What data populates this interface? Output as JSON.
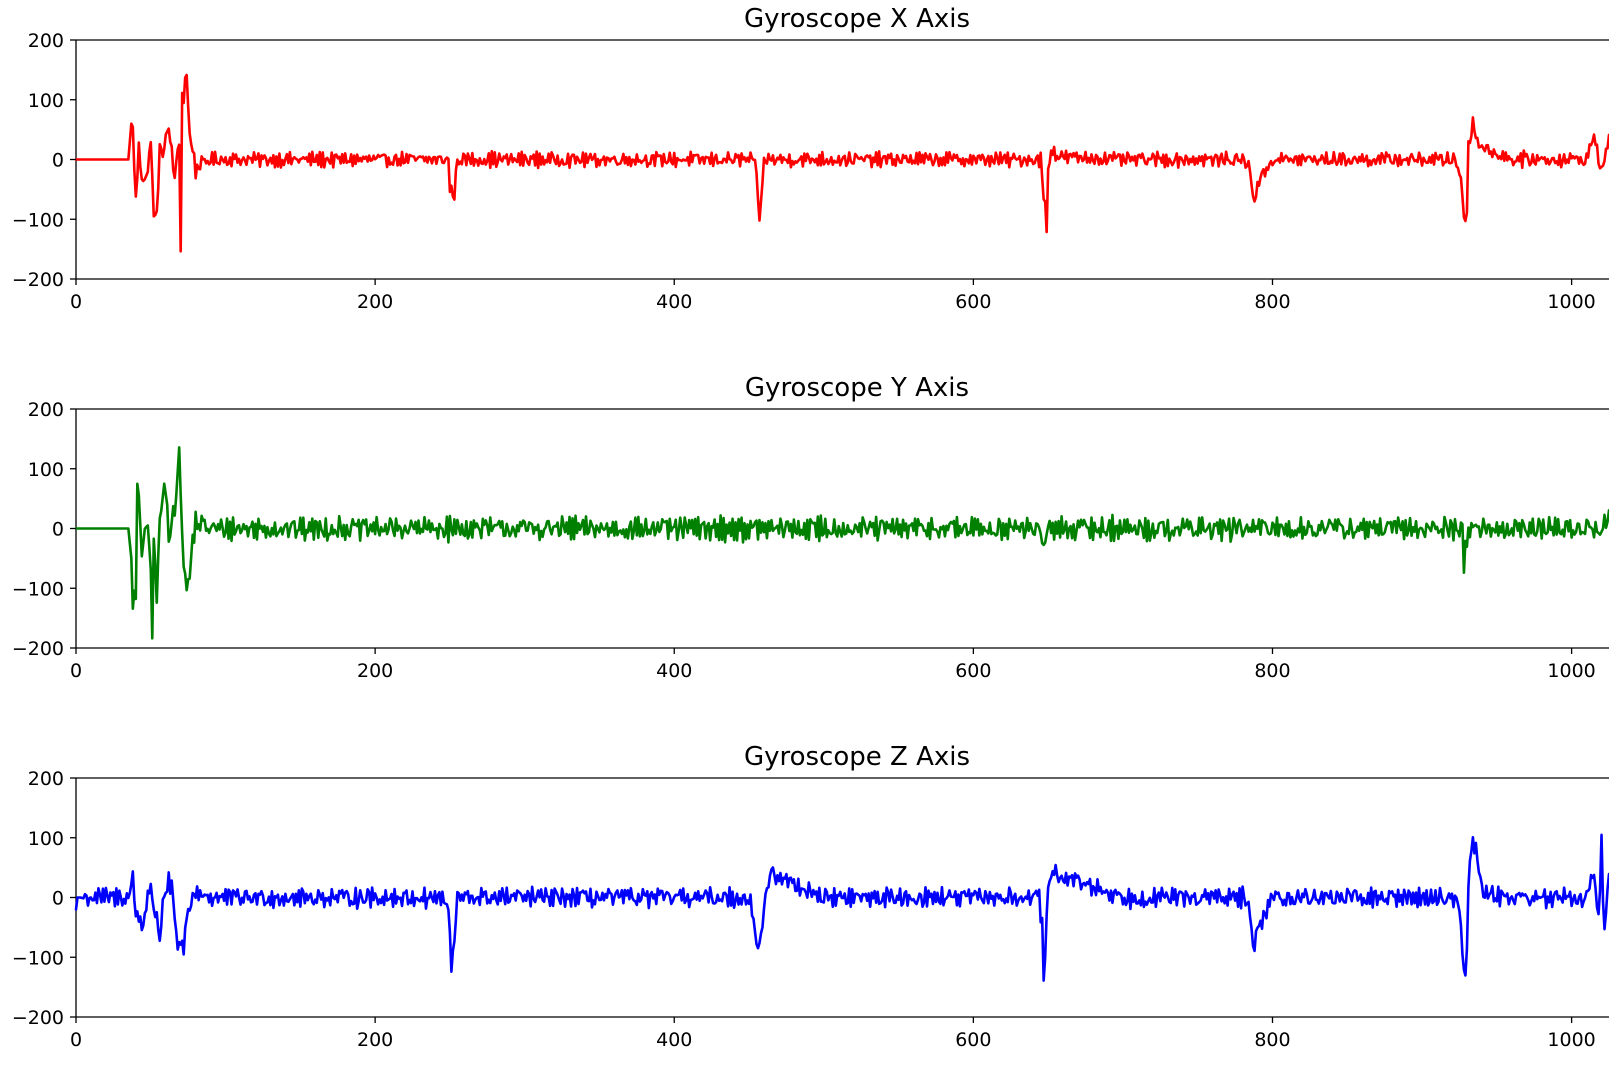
{
  "chart_data": [
    {
      "type": "line",
      "title": "Gyroscope X Axis",
      "xlabel": "",
      "ylabel": "",
      "xlim": [
        0,
        1025
      ],
      "ylim": [
        -200,
        200
      ],
      "xticks": [
        0,
        200,
        400,
        600,
        800,
        1000
      ],
      "yticks": [
        -200,
        -100,
        0,
        100,
        200
      ],
      "x_tick_labels": [
        "0",
        "200",
        "400",
        "600",
        "800",
        "1000"
      ],
      "y_tick_labels": [
        "−200",
        "−100",
        "0",
        "100",
        "200"
      ],
      "grid": false,
      "color": "#ff0000",
      "baseline_noise_amplitude": 16,
      "x": [
        0,
        35,
        37,
        38,
        40,
        42,
        44,
        46,
        48,
        50,
        52,
        54,
        56,
        58,
        60,
        62,
        64,
        66,
        68,
        69,
        70,
        71,
        72,
        73,
        74,
        76,
        78,
        80,
        82,
        90,
        100,
        130,
        160,
        200,
        249,
        250,
        252,
        253,
        255,
        258,
        300,
        350,
        400,
        450,
        452,
        454,
        455,
        456,
        457,
        458,
        460,
        500,
        550,
        600,
        645,
        646,
        647,
        648,
        649,
        650,
        652,
        656,
        700,
        750,
        780,
        784,
        786,
        788,
        790,
        800,
        850,
        900,
        922,
        926,
        927,
        928,
        929,
        930,
        931,
        932,
        934,
        936,
        940,
        960,
        980,
        1000,
        1010,
        1015,
        1020,
        1025
      ],
      "y": [
        0,
        0,
        60,
        50,
        -70,
        20,
        -30,
        -30,
        -25,
        40,
        -100,
        -90,
        15,
        10,
        40,
        45,
        20,
        -40,
        20,
        25,
        -145,
        105,
        100,
        140,
        138,
        40,
        20,
        -20,
        -10,
        0,
        0,
        0,
        0,
        0,
        0,
        -50,
        -55,
        -60,
        0,
        0,
        0,
        0,
        0,
        0,
        0,
        -10,
        -30,
        -60,
        -97,
        -80,
        0,
        0,
        0,
        0,
        0,
        -30,
        -60,
        -80,
        -115,
        -20,
        20,
        5,
        0,
        0,
        0,
        -10,
        -40,
        -70,
        -40,
        0,
        0,
        0,
        0,
        -30,
        -60,
        -95,
        -103,
        -80,
        20,
        35,
        60,
        40,
        20,
        0,
        0,
        0,
        0,
        40,
        -20,
        30
      ]
    },
    {
      "type": "line",
      "title": "Gyroscope Y Axis",
      "xlabel": "",
      "ylabel": "",
      "xlim": [
        0,
        1025
      ],
      "ylim": [
        -200,
        200
      ],
      "xticks": [
        0,
        200,
        400,
        600,
        800,
        1000
      ],
      "yticks": [
        -200,
        -100,
        0,
        100,
        200
      ],
      "x_tick_labels": [
        "0",
        "200",
        "400",
        "600",
        "800",
        "1000"
      ],
      "y_tick_labels": [
        "−200",
        "−100",
        "0",
        "100",
        "200"
      ],
      "grid": false,
      "color": "#008000",
      "baseline_noise_amplitude": 26,
      "x": [
        0,
        35,
        37,
        38,
        40,
        41,
        42,
        44,
        46,
        48,
        50,
        51,
        52,
        53,
        54,
        55,
        56,
        58,
        60,
        62,
        64,
        66,
        68,
        69,
        70,
        72,
        74,
        76,
        78,
        80,
        90,
        100,
        120,
        150,
        200,
        250,
        300,
        400,
        500,
        600,
        645,
        648,
        650,
        700,
        800,
        927,
        928,
        929,
        931,
        1000,
        1010,
        1020,
        1025
      ],
      "y": [
        0,
        0,
        -50,
        -120,
        -120,
        75,
        40,
        -40,
        5,
        -10,
        -65,
        -180,
        -30,
        -40,
        -125,
        -60,
        20,
        50,
        70,
        -20,
        20,
        40,
        90,
        120,
        70,
        -70,
        -100,
        -80,
        -20,
        10,
        0,
        0,
        0,
        0,
        0,
        0,
        0,
        0,
        0,
        0,
        0,
        -40,
        0,
        0,
        0,
        0,
        -55,
        -40,
        0,
        0,
        0,
        0,
        20
      ]
    },
    {
      "type": "line",
      "title": "Gyroscope Z Axis",
      "xlabel": "",
      "ylabel": "",
      "xlim": [
        0,
        1025
      ],
      "ylim": [
        -200,
        200
      ],
      "xticks": [
        0,
        200,
        400,
        600,
        800,
        1000
      ],
      "yticks": [
        -200,
        -100,
        0,
        100,
        200
      ],
      "x_tick_labels": [
        "0",
        "200",
        "400",
        "600",
        "800",
        "1000"
      ],
      "y_tick_labels": [
        "−200",
        "−100",
        "0",
        "100",
        "200"
      ],
      "grid": false,
      "color": "#0000ff",
      "baseline_noise_amplitude": 22,
      "x": [
        0,
        1,
        3,
        35,
        37,
        38,
        40,
        42,
        44,
        46,
        48,
        50,
        52,
        54,
        56,
        58,
        60,
        62,
        64,
        66,
        68,
        70,
        71,
        72,
        73,
        74,
        76,
        78,
        80,
        90,
        100,
        150,
        200,
        245,
        248,
        250,
        251,
        252,
        255,
        260,
        300,
        400,
        450,
        452,
        454,
        455,
        456,
        458,
        460,
        462,
        465,
        500,
        600,
        644,
        646,
        647,
        648,
        649,
        650,
        652,
        655,
        700,
        780,
        784,
        786,
        788,
        790,
        800,
        900,
        922,
        926,
        927,
        928,
        929,
        930,
        931,
        932,
        934,
        936,
        940,
        960,
        980,
        1000,
        1010,
        1015,
        1018,
        1020,
        1022,
        1025
      ],
      "y": [
        -20,
        0,
        0,
        0,
        20,
        35,
        -30,
        -30,
        -50,
        -30,
        10,
        15,
        -30,
        -20,
        -80,
        0,
        10,
        25,
        15,
        -40,
        -80,
        -90,
        -80,
        -80,
        -60,
        -40,
        -20,
        0,
        10,
        0,
        0,
        0,
        0,
        0,
        -10,
        -60,
        -120,
        -100,
        0,
        0,
        0,
        0,
        0,
        -20,
        -60,
        -80,
        -80,
        -60,
        -20,
        10,
        40,
        0,
        0,
        0,
        -50,
        -125,
        -100,
        -40,
        10,
        30,
        40,
        0,
        0,
        -20,
        -55,
        -80,
        -55,
        0,
        0,
        0,
        -40,
        -90,
        -120,
        -135,
        -80,
        30,
        60,
        95,
        85,
        10,
        0,
        0,
        0,
        0,
        40,
        -40,
        90,
        -70,
        50
      ]
    }
  ]
}
